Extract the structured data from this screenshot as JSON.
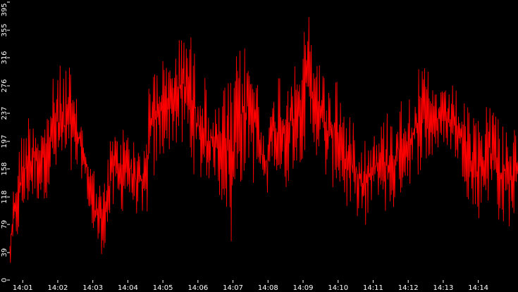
{
  "chart_data": {
    "type": "line",
    "title": "",
    "xlabel": "",
    "ylabel": "",
    "grid": false,
    "legend": "none",
    "background_color": "#000000",
    "series_color": "#ff0000",
    "tick_color": "#ffffff",
    "ylim": [
      0,
      395
    ],
    "y_ticks": [
      0,
      39,
      79,
      118,
      158,
      197,
      237,
      276,
      316,
      355,
      395
    ],
    "y_tick_labels": [
      "0",
      "39",
      "79",
      "118",
      "158",
      "197",
      "237",
      "276",
      "316",
      "355",
      "395"
    ],
    "xlim": [
      "14:00:38",
      "14:15:08"
    ],
    "x_ticks": [
      "14:01",
      "14:02",
      "14:03",
      "14:04",
      "14:05",
      "14:06",
      "14:07",
      "14:08",
      "14:09",
      "14:10",
      "14:11",
      "14:12",
      "14:13",
      "14:14"
    ],
    "x_tick_labels": [
      "14:01",
      "14:02",
      "14:03",
      "14:04",
      "14:05",
      "14:06",
      "14:07",
      "14:08",
      "14:09",
      "14:10",
      "14:11",
      "14:12",
      "14:13",
      "14:14"
    ],
    "series": [
      {
        "x": [
          "14:00:38",
          "14:00:48",
          "14:00:58",
          "14:01:08",
          "14:01:18",
          "14:01:28",
          "14:01:38",
          "14:01:48",
          "14:01:58",
          "14:02:08",
          "14:02:18",
          "14:02:28",
          "14:02:38",
          "14:02:48",
          "14:02:58",
          "14:03:08",
          "14:03:18",
          "14:03:28",
          "14:03:38",
          "14:03:48",
          "14:03:58",
          "14:04:08",
          "14:04:18",
          "14:04:28",
          "14:04:38",
          "14:04:48",
          "14:04:58",
          "14:05:08",
          "14:05:18",
          "14:05:28",
          "14:05:38",
          "14:05:48",
          "14:05:58",
          "14:06:08",
          "14:06:18",
          "14:06:28",
          "14:06:38",
          "14:06:48",
          "14:06:58",
          "14:07:08",
          "14:07:18",
          "14:07:28",
          "14:07:38",
          "14:07:48",
          "14:07:58",
          "14:08:08",
          "14:08:18",
          "14:08:28",
          "14:08:38",
          "14:08:48",
          "14:08:58",
          "14:09:08",
          "14:09:18",
          "14:09:28",
          "14:09:38",
          "14:09:48",
          "14:09:58",
          "14:10:08",
          "14:10:18",
          "14:10:28",
          "14:10:38",
          "14:10:48",
          "14:10:58",
          "14:11:08",
          "14:11:18",
          "14:11:28",
          "14:11:38",
          "14:11:48",
          "14:11:58",
          "14:12:08",
          "14:12:18",
          "14:12:28",
          "14:12:38",
          "14:12:48",
          "14:12:58",
          "14:13:08",
          "14:13:18",
          "14:13:28",
          "14:13:38",
          "14:13:48",
          "14:13:58",
          "14:14:08",
          "14:14:18",
          "14:14:28",
          "14:14:38",
          "14:14:48",
          "14:14:58",
          "14:15:08"
        ],
        "min": [
          10,
          40,
          75,
          100,
          105,
          110,
          115,
          120,
          140,
          150,
          130,
          140,
          150,
          130,
          60,
          40,
          35,
          70,
          100,
          90,
          110,
          100,
          90,
          50,
          130,
          140,
          170,
          180,
          190,
          180,
          170,
          160,
          140,
          130,
          140,
          150,
          110,
          100,
          30,
          140,
          130,
          170,
          120,
          140,
          110,
          180,
          120,
          110,
          150,
          160,
          170,
          170,
          180,
          170,
          140,
          130,
          130,
          110,
          90,
          80,
          100,
          40,
          110,
          120,
          100,
          80,
          100,
          120,
          130,
          140,
          150,
          160,
          160,
          180,
          180,
          190,
          170,
          160,
          130,
          90,
          80,
          100,
          110,
          110,
          70,
          70,
          80,
          90
        ],
        "max": [
          70,
          180,
          210,
          240,
          250,
          230,
          230,
          280,
          300,
          310,
          320,
          270,
          240,
          200,
          170,
          150,
          130,
          200,
          220,
          210,
          240,
          200,
          190,
          210,
          290,
          320,
          330,
          300,
          340,
          345,
          395,
          350,
          320,
          310,
          260,
          240,
          260,
          290,
          280,
          330,
          340,
          320,
          330,
          230,
          220,
          250,
          310,
          300,
          320,
          300,
          340,
          390,
          350,
          320,
          290,
          280,
          300,
          260,
          230,
          240,
          200,
          220,
          220,
          200,
          240,
          250,
          250,
          260,
          270,
          280,
          300,
          310,
          290,
          280,
          270,
          270,
          280,
          260,
          250,
          240,
          230,
          240,
          270,
          250,
          240,
          230,
          220,
          210
        ]
      }
    ]
  }
}
